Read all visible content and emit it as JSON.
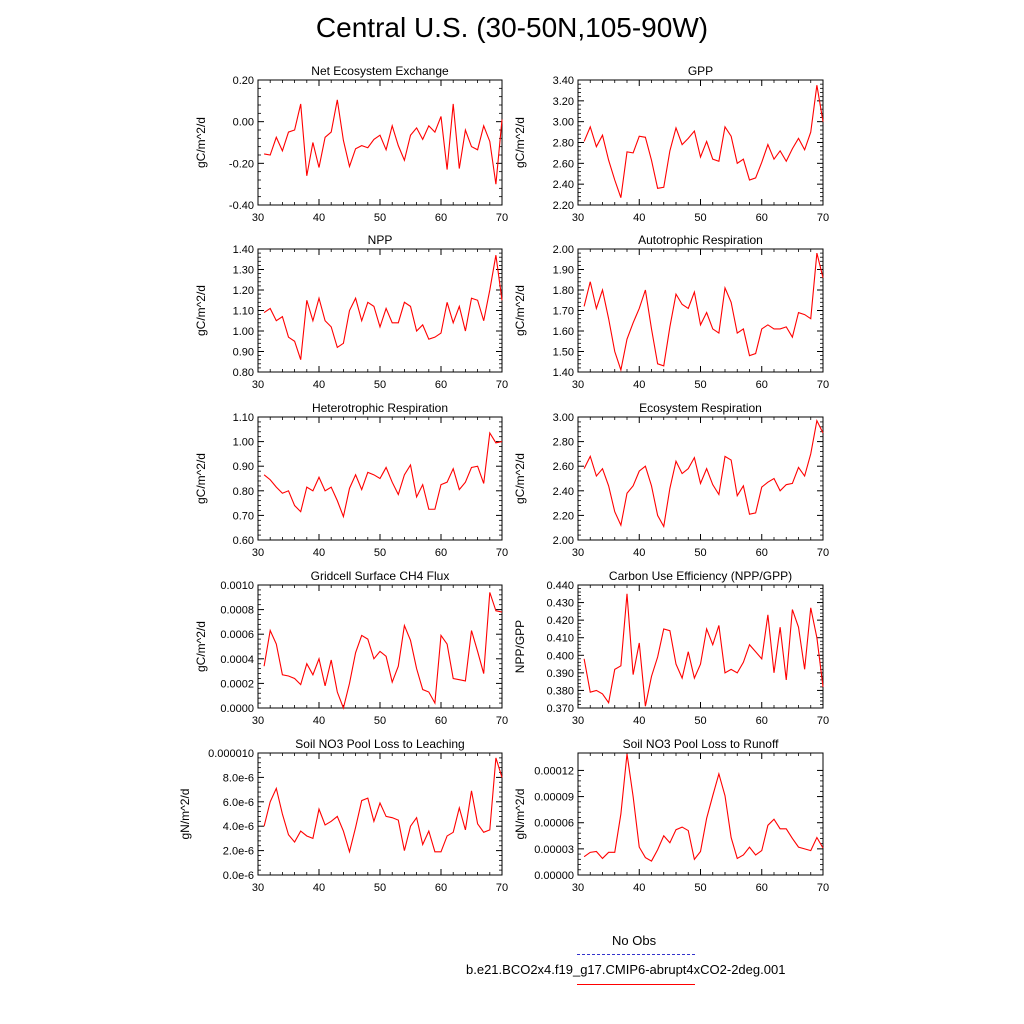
{
  "title": "Central U.S. (30-50N,105-90W)",
  "legend": {
    "obs_label": "No Obs",
    "model_label": "b.e21.BCO2x4.f19_g17.CMIP6-abrupt4xCO2-2deg.001",
    "obs_color": "#3333cc",
    "model_color": "#ff0000"
  },
  "line_color": "#ff0000",
  "chart_data": [
    {
      "type": "line",
      "title": "Net Ecosystem Exchange",
      "ylabel": "gC/m^2/d",
      "xlim": [
        30,
        70
      ],
      "ylim": [
        -0.4,
        0.2
      ],
      "xticks": [
        30,
        40,
        50,
        60,
        70
      ],
      "xtick_labels": [
        "30",
        "40",
        "50",
        "60",
        "70"
      ],
      "yticks": [
        -0.4,
        -0.2,
        0.0,
        0.2
      ],
      "ytick_labels": [
        "-0.40",
        "-0.20",
        "0.00",
        "0.20"
      ],
      "x_start": 31,
      "values": [
        -0.155,
        -0.16,
        -0.075,
        -0.14,
        -0.05,
        -0.04,
        0.085,
        -0.26,
        -0.1,
        -0.22,
        -0.075,
        -0.05,
        0.105,
        -0.09,
        -0.215,
        -0.13,
        -0.115,
        -0.125,
        -0.085,
        -0.065,
        -0.135,
        -0.02,
        -0.115,
        -0.185,
        -0.065,
        -0.03,
        -0.085,
        -0.02,
        -0.05,
        0.025,
        -0.23,
        0.085,
        -0.225,
        -0.04,
        -0.12,
        -0.135,
        -0.02,
        -0.095,
        -0.3,
        0.01
      ]
    },
    {
      "type": "line",
      "title": "GPP",
      "ylabel": "gC/m^2/d",
      "xlim": [
        30,
        70
      ],
      "ylim": [
        2.2,
        3.4
      ],
      "xticks": [
        30,
        40,
        50,
        60,
        70
      ],
      "xtick_labels": [
        "30",
        "40",
        "50",
        "60",
        "70"
      ],
      "yticks": [
        2.2,
        2.4,
        2.6,
        2.8,
        3.0,
        3.2,
        3.4
      ],
      "ytick_labels": [
        "2.20",
        "2.40",
        "2.60",
        "2.80",
        "3.00",
        "3.20",
        "3.40"
      ],
      "x_start": 31,
      "values": [
        2.81,
        2.95,
        2.76,
        2.87,
        2.63,
        2.44,
        2.27,
        2.71,
        2.7,
        2.86,
        2.85,
        2.63,
        2.36,
        2.37,
        2.72,
        2.94,
        2.78,
        2.84,
        2.91,
        2.66,
        2.81,
        2.64,
        2.62,
        2.95,
        2.86,
        2.6,
        2.64,
        2.44,
        2.46,
        2.61,
        2.78,
        2.64,
        2.72,
        2.62,
        2.74,
        2.84,
        2.73,
        2.9,
        3.35,
        3.0
      ]
    },
    {
      "type": "line",
      "title": "NPP",
      "ylabel": "gC/m^2/d",
      "xlim": [
        30,
        70
      ],
      "ylim": [
        0.8,
        1.4
      ],
      "xticks": [
        30,
        40,
        50,
        60,
        70
      ],
      "xtick_labels": [
        "30",
        "40",
        "50",
        "60",
        "70"
      ],
      "yticks": [
        0.8,
        0.9,
        1.0,
        1.1,
        1.2,
        1.3,
        1.4
      ],
      "ytick_labels": [
        "0.80",
        "0.90",
        "1.00",
        "1.10",
        "1.20",
        "1.30",
        "1.40"
      ],
      "x_start": 31,
      "values": [
        1.09,
        1.11,
        1.05,
        1.07,
        0.97,
        0.95,
        0.86,
        1.15,
        1.05,
        1.16,
        1.05,
        1.02,
        0.92,
        0.94,
        1.1,
        1.16,
        1.05,
        1.14,
        1.12,
        1.02,
        1.11,
        1.04,
        1.04,
        1.14,
        1.12,
        1.0,
        1.03,
        0.96,
        0.97,
        0.99,
        1.14,
        1.04,
        1.12,
        1.0,
        1.16,
        1.15,
        1.05,
        1.2,
        1.37,
        1.15
      ]
    },
    {
      "type": "line",
      "title": "Autotrophic Respiration",
      "ylabel": "gC/m^2/d",
      "xlim": [
        30,
        70
      ],
      "ylim": [
        1.4,
        2.0
      ],
      "xticks": [
        30,
        40,
        50,
        60,
        70
      ],
      "xtick_labels": [
        "30",
        "40",
        "50",
        "60",
        "70"
      ],
      "yticks": [
        1.4,
        1.5,
        1.6,
        1.7,
        1.8,
        1.9,
        2.0
      ],
      "ytick_labels": [
        "1.40",
        "1.50",
        "1.60",
        "1.70",
        "1.80",
        "1.90",
        "2.00"
      ],
      "x_start": 31,
      "values": [
        1.72,
        1.84,
        1.71,
        1.8,
        1.66,
        1.5,
        1.41,
        1.56,
        1.64,
        1.71,
        1.8,
        1.61,
        1.44,
        1.43,
        1.62,
        1.78,
        1.73,
        1.71,
        1.79,
        1.63,
        1.69,
        1.61,
        1.59,
        1.81,
        1.74,
        1.59,
        1.61,
        1.48,
        1.49,
        1.61,
        1.63,
        1.61,
        1.61,
        1.62,
        1.57,
        1.69,
        1.68,
        1.66,
        1.98,
        1.86
      ]
    },
    {
      "type": "line",
      "title": "Heterotrophic Respiration",
      "ylabel": "gC/m^2/d",
      "xlim": [
        30,
        70
      ],
      "ylim": [
        0.6,
        1.1
      ],
      "xticks": [
        30,
        40,
        50,
        60,
        70
      ],
      "xtick_labels": [
        "30",
        "40",
        "50",
        "60",
        "70"
      ],
      "yticks": [
        0.6,
        0.7,
        0.8,
        0.9,
        1.0,
        1.1
      ],
      "ytick_labels": [
        "0.60",
        "0.70",
        "0.80",
        "0.90",
        "1.00",
        "1.10"
      ],
      "x_start": 31,
      "values": [
        0.865,
        0.845,
        0.815,
        0.79,
        0.8,
        0.74,
        0.715,
        0.815,
        0.8,
        0.855,
        0.8,
        0.815,
        0.76,
        0.695,
        0.81,
        0.865,
        0.805,
        0.875,
        0.865,
        0.85,
        0.895,
        0.835,
        0.785,
        0.865,
        0.905,
        0.775,
        0.825,
        0.725,
        0.725,
        0.825,
        0.835,
        0.89,
        0.805,
        0.835,
        0.895,
        0.9,
        0.83,
        1.035,
        0.995,
        1.0
      ]
    },
    {
      "type": "line",
      "title": "Ecosystem Respiration",
      "ylabel": "gC/m^2/d",
      "xlim": [
        30,
        70
      ],
      "ylim": [
        2.0,
        3.0
      ],
      "xticks": [
        30,
        40,
        50,
        60,
        70
      ],
      "xtick_labels": [
        "30",
        "40",
        "50",
        "60",
        "70"
      ],
      "yticks": [
        2.0,
        2.2,
        2.4,
        2.6,
        2.8,
        3.0
      ],
      "ytick_labels": [
        "2.00",
        "2.20",
        "2.40",
        "2.60",
        "2.80",
        "3.00"
      ],
      "x_start": 31,
      "values": [
        2.58,
        2.68,
        2.52,
        2.58,
        2.44,
        2.23,
        2.12,
        2.38,
        2.44,
        2.56,
        2.6,
        2.44,
        2.2,
        2.11,
        2.42,
        2.64,
        2.54,
        2.58,
        2.67,
        2.46,
        2.58,
        2.45,
        2.37,
        2.68,
        2.65,
        2.36,
        2.44,
        2.21,
        2.22,
        2.43,
        2.47,
        2.5,
        2.4,
        2.45,
        2.46,
        2.59,
        2.52,
        2.7,
        2.97,
        2.87
      ]
    },
    {
      "type": "line",
      "title": "Gridcell Surface CH4 Flux",
      "ylabel": "gC/m^2/d",
      "xlim": [
        30,
        70
      ],
      "ylim": [
        0.0,
        0.001
      ],
      "xticks": [
        30,
        40,
        50,
        60,
        70
      ],
      "xtick_labels": [
        "30",
        "40",
        "50",
        "60",
        "70"
      ],
      "yticks": [
        0.0,
        0.0002,
        0.0004,
        0.0006,
        0.0008,
        0.001
      ],
      "ytick_labels": [
        "0.0000",
        "0.0002",
        "0.0004",
        "0.0006",
        "0.0008",
        "0.0010"
      ],
      "x_start": 31,
      "values": [
        0.00034,
        0.00063,
        0.00052,
        0.00027,
        0.00026,
        0.00024,
        0.00019,
        0.00036,
        0.00027,
        0.0004,
        0.00018,
        0.00039,
        0.00013,
        0.0,
        0.0002,
        0.00045,
        0.00059,
        0.00056,
        0.0004,
        0.00046,
        0.00042,
        0.00021,
        0.00034,
        0.00067,
        0.00055,
        0.00032,
        0.00015,
        0.00013,
        4e-05,
        0.00059,
        0.00052,
        0.00024,
        0.00023,
        0.00022,
        0.00063,
        0.00046,
        0.00028,
        0.00094,
        0.00079,
        0.00078
      ]
    },
    {
      "type": "line",
      "title": "Carbon Use Efficiency (NPP/GPP)",
      "ylabel": "NPP/GPP",
      "xlim": [
        30,
        70
      ],
      "ylim": [
        0.37,
        0.44
      ],
      "xticks": [
        30,
        40,
        50,
        60,
        70
      ],
      "xtick_labels": [
        "30",
        "40",
        "50",
        "60",
        "70"
      ],
      "yticks": [
        0.37,
        0.38,
        0.39,
        0.4,
        0.41,
        0.42,
        0.43,
        0.44
      ],
      "ytick_labels": [
        "0.370",
        "0.380",
        "0.390",
        "0.400",
        "0.410",
        "0.420",
        "0.430",
        "0.440"
      ],
      "x_start": 31,
      "values": [
        0.398,
        0.379,
        0.38,
        0.378,
        0.373,
        0.392,
        0.394,
        0.435,
        0.389,
        0.407,
        0.371,
        0.388,
        0.399,
        0.415,
        0.414,
        0.395,
        0.387,
        0.402,
        0.387,
        0.395,
        0.415,
        0.406,
        0.417,
        0.39,
        0.392,
        0.39,
        0.396,
        0.406,
        0.402,
        0.398,
        0.423,
        0.39,
        0.416,
        0.386,
        0.426,
        0.416,
        0.392,
        0.427,
        0.41,
        0.382
      ]
    },
    {
      "type": "line",
      "title": "Soil NO3 Pool Loss to Leaching",
      "ylabel": "gN/m^2/d",
      "xlim": [
        30,
        70
      ],
      "ylim": [
        0.0,
        1e-05
      ],
      "xticks": [
        30,
        40,
        50,
        60,
        70
      ],
      "xtick_labels": [
        "30",
        "40",
        "50",
        "60",
        "70"
      ],
      "yticks": [
        0.0,
        2e-06,
        4e-06,
        6e-06,
        8e-06,
        1e-05
      ],
      "ytick_labels": [
        "0.0e-6",
        "2.0e-6",
        "4.0e-6",
        "6.0e-6",
        "8.0e-6",
        "0.000010"
      ],
      "x_start": 31,
      "values": [
        4e-06,
        6e-06,
        7.1e-06,
        5e-06,
        3.3e-06,
        2.7e-06,
        3.6e-06,
        3.2e-06,
        3e-06,
        5.4e-06,
        4.1e-06,
        4.4e-06,
        4.8e-06,
        3.6e-06,
        1.9e-06,
        3.9e-06,
        6.1e-06,
        6.3e-06,
        4.4e-06,
        5.9e-06,
        4.8e-06,
        4.7e-06,
        4.5e-06,
        2e-06,
        4e-06,
        4.7e-06,
        2.5e-06,
        3.6e-06,
        1.9e-06,
        1.9e-06,
        3.2e-06,
        3.5e-06,
        5.5e-06,
        3.7e-06,
        6.9e-06,
        4.2e-06,
        3.5e-06,
        3.7e-06,
        9.6e-06,
        8e-06
      ]
    },
    {
      "type": "line",
      "title": "Soil NO3 Pool Loss to Runoff",
      "ylabel": "gN/m^2/d",
      "xlim": [
        30,
        70
      ],
      "ylim": [
        0.0,
        0.00014
      ],
      "xticks": [
        30,
        40,
        50,
        60,
        70
      ],
      "xtick_labels": [
        "30",
        "40",
        "50",
        "60",
        "70"
      ],
      "yticks": [
        0.0,
        3e-05,
        6e-05,
        9e-05,
        0.00012
      ],
      "ytick_labels": [
        "0.00000",
        "0.00003",
        "0.00006",
        "0.00009",
        "0.00012"
      ],
      "x_start": 31,
      "values": [
        2.1e-05,
        2.6e-05,
        2.7e-05,
        1.9e-05,
        2.6e-05,
        2.6e-05,
        7e-05,
        0.000139,
        9e-05,
        3.2e-05,
        2e-05,
        1.6e-05,
        2.9e-05,
        4.5e-05,
        3.7e-05,
        5.2e-05,
        5.5e-05,
        5.1e-05,
        1.8e-05,
        2.7e-05,
        6.5e-05,
        9.1e-05,
        0.000116,
        9.1e-05,
        4.3e-05,
        1.9e-05,
        2.3e-05,
        3.2e-05,
        2.3e-05,
        2.8e-05,
        5.7e-05,
        6.4e-05,
        5.3e-05,
        5.3e-05,
        4.2e-05,
        3.2e-05,
        3e-05,
        2.8e-05,
        4.3e-05,
        3.1e-05
      ]
    }
  ]
}
